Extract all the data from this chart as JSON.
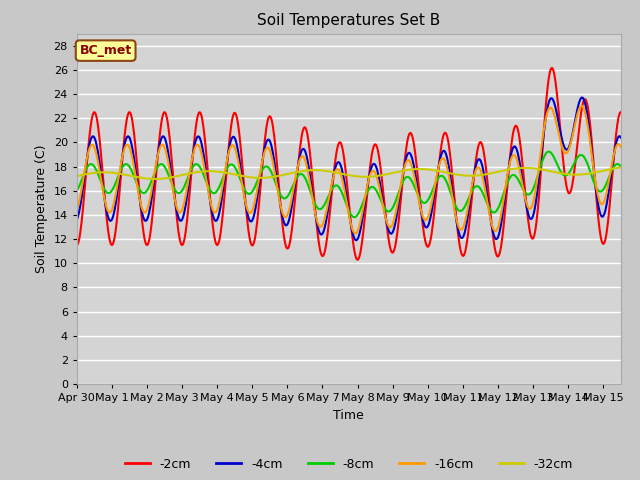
{
  "title": "Soil Temperatures Set B",
  "xlabel": "Time",
  "ylabel": "Soil Temperature (C)",
  "ylim": [
    0,
    29
  ],
  "yticks": [
    0,
    2,
    4,
    6,
    8,
    10,
    12,
    14,
    16,
    18,
    20,
    22,
    24,
    26,
    28
  ],
  "legend_label": "BC_met",
  "series_labels": [
    "-2cm",
    "-4cm",
    "-8cm",
    "-16cm",
    "-32cm"
  ],
  "series_colors": [
    "#ff0000",
    "#0000cc",
    "#00cc00",
    "#ff9900",
    "#cccc00"
  ],
  "line_widths": [
    1.5,
    1.5,
    1.5,
    1.5,
    1.5
  ],
  "fig_facecolor": "#c8c8c8",
  "ax_facecolor": "#d4d4d4",
  "grid_color": "#ffffff",
  "x_tick_labels": [
    "Apr 30",
    "May 1",
    "May 2",
    "May 3",
    "May 4",
    "May 5",
    "May 6",
    "May 7",
    "May 8",
    "May 9",
    "May 10",
    "May 11",
    "May 12",
    "May 13",
    "May 14",
    "May 15"
  ],
  "x_tick_positions": [
    0,
    1,
    2,
    3,
    4,
    5,
    6,
    7,
    8,
    9,
    10,
    11,
    12,
    13,
    14,
    15
  ]
}
